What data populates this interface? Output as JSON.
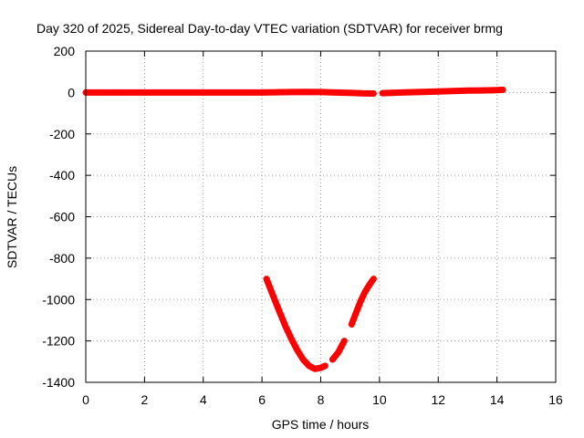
{
  "chart_data": {
    "type": "scatter",
    "title": "Day 320 of 2025, Sidereal Day-to-day VTEC variation (SDTVAR) for receiver brmg",
    "xlabel": "GPS time / hours",
    "ylabel": "SDTVAR / TECUs",
    "xlim": [
      0,
      16
    ],
    "ylim": [
      -1400,
      200
    ],
    "x_ticks": [
      0,
      2,
      4,
      6,
      8,
      10,
      12,
      14,
      16
    ],
    "y_ticks": [
      200,
      0,
      -200,
      -400,
      -600,
      -800,
      -1000,
      -1200,
      -1400
    ],
    "grid": true,
    "legend": "none",
    "series_color": "#ff0000",
    "series": [
      {
        "name": "near-zero track (0-9.8 h)",
        "x": [
          0.0,
          1.0,
          2.0,
          3.0,
          4.0,
          5.0,
          6.0,
          7.0,
          7.5,
          8.0,
          8.5,
          9.0,
          9.4,
          9.8
        ],
        "y": [
          0,
          0,
          0,
          0,
          0,
          0,
          0,
          2,
          3,
          2,
          0,
          -2,
          -4,
          -5
        ]
      },
      {
        "name": "near-zero track (10.1-14.2 h)",
        "x": [
          10.1,
          10.5,
          11.0,
          11.5,
          12.0,
          12.5,
          13.0,
          13.5,
          14.0,
          14.2
        ],
        "y": [
          -3,
          -1,
          1,
          3,
          5,
          7,
          9,
          10,
          12,
          13
        ]
      },
      {
        "name": "dip arc (part 1)",
        "x": [
          6.15,
          6.4,
          6.6,
          6.8,
          7.0,
          7.2,
          7.4,
          7.6,
          7.8,
          8.0,
          8.15
        ],
        "y": [
          -900,
          -990,
          -1060,
          -1130,
          -1190,
          -1245,
          -1290,
          -1320,
          -1335,
          -1330,
          -1320
        ]
      },
      {
        "name": "dip arc (part 2)",
        "x": [
          8.4,
          8.6,
          8.8
        ],
        "y": [
          -1290,
          -1255,
          -1200
        ]
      },
      {
        "name": "dip arc (part 3)",
        "x": [
          9.05,
          9.2,
          9.35,
          9.5,
          9.65,
          9.8
        ],
        "y": [
          -1120,
          -1065,
          -1010,
          -965,
          -930,
          -900
        ]
      }
    ]
  }
}
